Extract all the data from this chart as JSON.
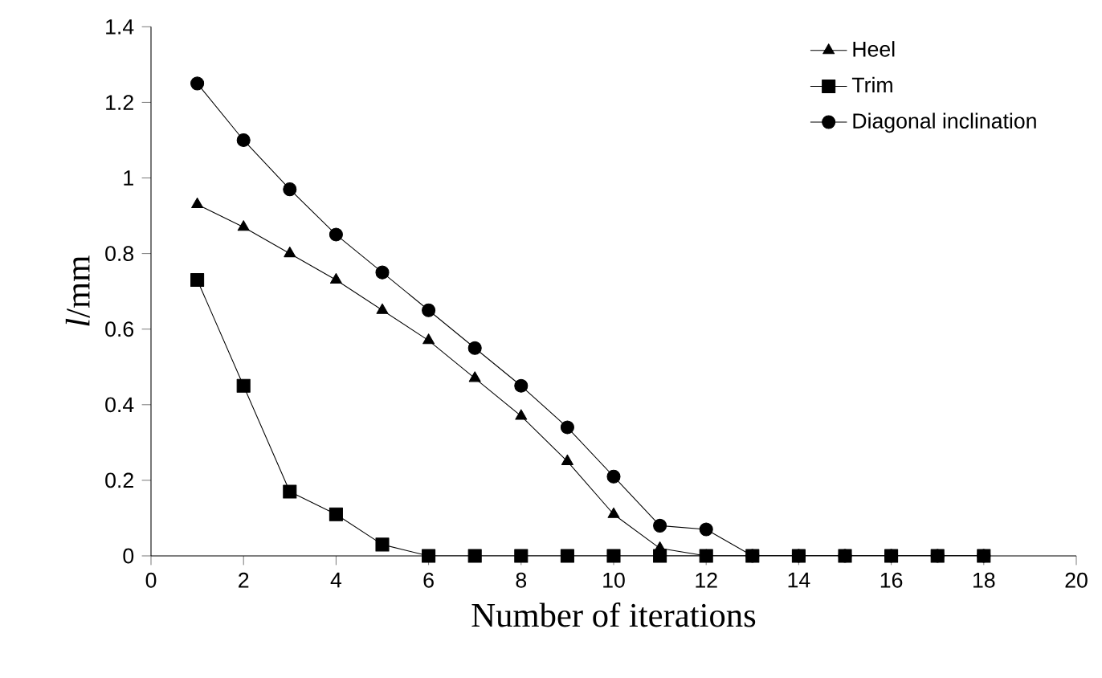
{
  "chart_data": {
    "type": "line",
    "xlabel": "Number of iterations",
    "ylabel": "*l*/mm",
    "x": [
      1,
      2,
      3,
      4,
      5,
      6,
      7,
      8,
      9,
      10,
      11,
      12,
      13,
      14,
      15,
      16,
      17,
      18
    ],
    "series": [
      {
        "name": "Heel",
        "color": "#000000",
        "marker": "triangle",
        "values": [
          0.93,
          0.87,
          0.8,
          0.73,
          0.65,
          0.57,
          0.47,
          0.37,
          0.25,
          0.11,
          0.02,
          0,
          0,
          0,
          0,
          0,
          0,
          0
        ]
      },
      {
        "name": "Trim",
        "color": "#000000",
        "marker": "square",
        "values": [
          0.73,
          0.45,
          0.17,
          0.11,
          0.03,
          0,
          0,
          0,
          0,
          0,
          0,
          0,
          0,
          0,
          0,
          0,
          0,
          0
        ]
      },
      {
        "name": "Diagonal inclination",
        "color": "#000000",
        "marker": "circle",
        "values": [
          1.25,
          1.1,
          0.97,
          0.85,
          0.75,
          0.65,
          0.55,
          0.45,
          0.34,
          0.21,
          0.08,
          0.07,
          0,
          0,
          0,
          0,
          0,
          0
        ]
      }
    ],
    "xlim": [
      0,
      20
    ],
    "xticks": [
      0,
      2,
      4,
      6,
      8,
      10,
      12,
      14,
      16,
      18,
      20
    ],
    "ylim": [
      0,
      1.4
    ],
    "yticks": [
      0,
      0.2,
      0.4,
      0.6,
      0.8,
      1,
      1.2,
      1.4
    ],
    "grid": false,
    "legend": "top right",
    "line_style": "solid"
  }
}
